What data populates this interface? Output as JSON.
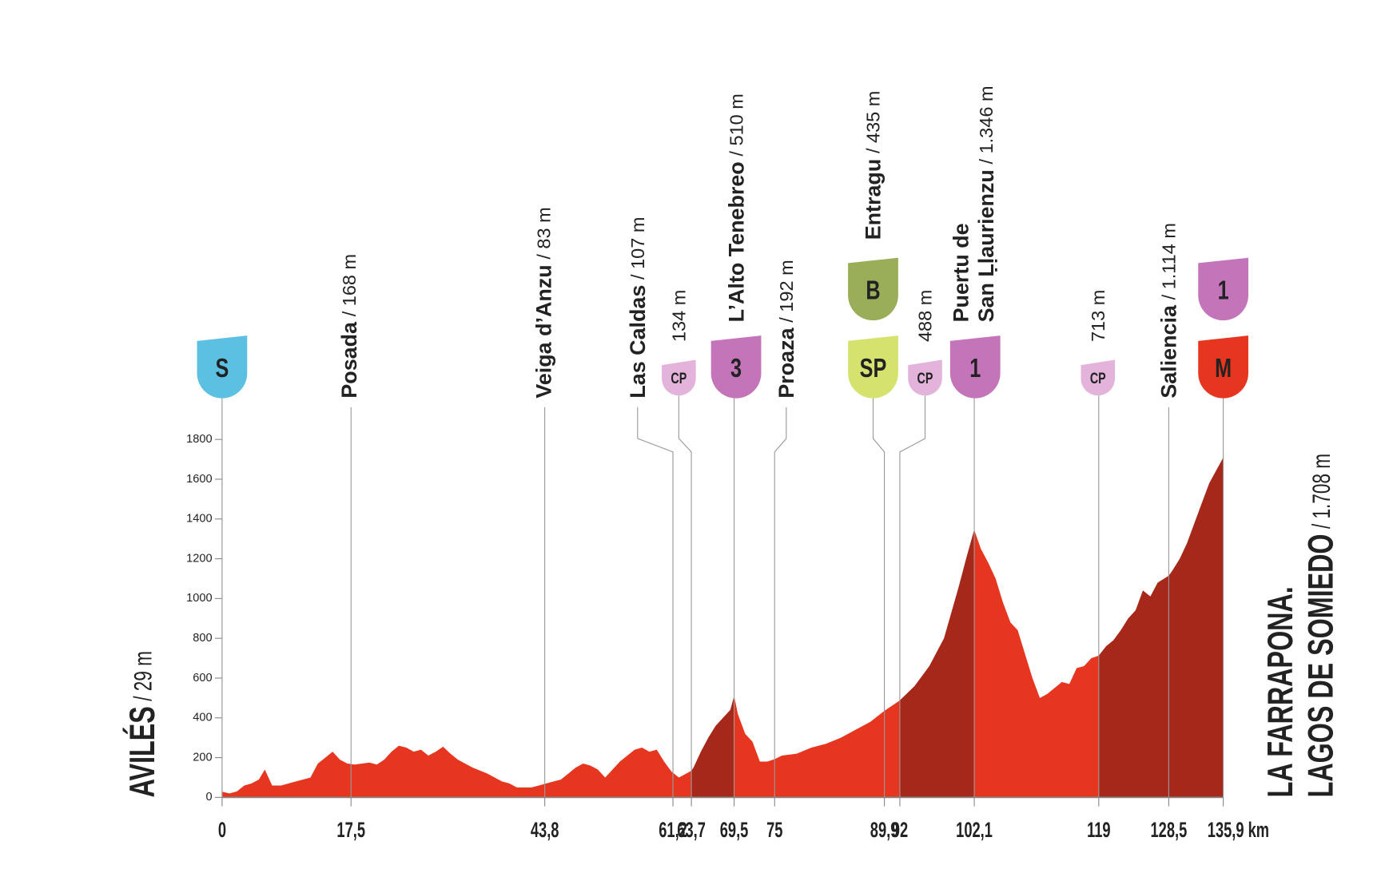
{
  "chart_data": {
    "type": "area",
    "start": {
      "name": "AVILÉS",
      "altitude": "/ 29 m"
    },
    "finish": {
      "name": [
        "LA FARRAPONA.",
        "LAGOS DE SOMIEDO"
      ],
      "altitude": "/ 1.708 m"
    },
    "x": [
      0,
      1,
      2,
      3,
      4,
      5,
      5.8,
      6.8,
      8,
      10,
      12,
      13,
      14,
      15,
      16,
      17,
      18,
      19,
      20,
      21,
      22,
      23,
      24,
      25,
      26,
      27,
      28,
      29,
      30,
      31,
      32,
      34,
      36,
      37,
      38,
      39,
      40,
      42,
      43,
      44,
      45,
      46,
      47,
      48,
      49,
      50,
      51,
      52,
      53,
      54,
      55,
      56,
      57,
      58,
      59,
      60,
      61,
      62,
      63,
      63.7,
      64,
      65,
      66,
      67,
      68,
      69,
      69.5,
      70,
      71,
      72,
      73,
      74,
      75,
      76,
      78,
      80,
      82,
      84,
      86,
      88,
      89.9,
      92,
      94,
      96,
      98,
      100,
      101,
      102.1,
      103,
      104,
      105,
      106,
      107,
      108,
      109,
      110,
      111,
      112,
      113,
      114,
      115,
      116,
      117,
      118,
      119,
      120,
      121,
      122,
      123,
      124,
      125,
      126,
      127,
      128.5,
      129,
      130,
      131,
      132,
      133,
      134,
      135.9
    ],
    "values": [
      29,
      20,
      30,
      60,
      70,
      90,
      140,
      60,
      60,
      80,
      100,
      170,
      200,
      230,
      190,
      170,
      165,
      170,
      175,
      165,
      190,
      230,
      260,
      250,
      230,
      240,
      210,
      230,
      255,
      220,
      190,
      150,
      120,
      100,
      80,
      70,
      50,
      50,
      60,
      70,
      80,
      90,
      120,
      150,
      170,
      160,
      140,
      100,
      140,
      180,
      210,
      240,
      250,
      230,
      240,
      180,
      130,
      100,
      120,
      134,
      150,
      230,
      300,
      360,
      400,
      440,
      510,
      420,
      320,
      280,
      180,
      180,
      192,
      210,
      220,
      250,
      270,
      300,
      340,
      380,
      435,
      488,
      560,
      660,
      800,
      1060,
      1200,
      1346,
      1250,
      1180,
      1100,
      980,
      880,
      840,
      720,
      600,
      500,
      520,
      550,
      580,
      570,
      650,
      660,
      700,
      713,
      760,
      790,
      840,
      900,
      940,
      1040,
      1010,
      1080,
      1114,
      1140,
      1200,
      1280,
      1380,
      1480,
      1580,
      1708
    ],
    "color": "#e6361f",
    "climb_color": "#a6281a",
    "climbs": [
      [
        63.7,
        69.5
      ],
      [
        92,
        102.1
      ],
      [
        119,
        135.9
      ]
    ],
    "xlim": [
      0,
      135.9
    ],
    "ylim": [
      0,
      1800
    ],
    "yticks": [
      0,
      200,
      400,
      600,
      800,
      1000,
      1200,
      1400,
      1600,
      1800
    ],
    "xticks": [
      0,
      {
        "value": 17.5,
        "label": "17,5"
      },
      {
        "value": 43.8,
        "label": "43,8"
      },
      {
        "value": 61.2,
        "label": "61,2"
      },
      {
        "value": 63.7,
        "label": "63,7"
      },
      {
        "value": 69.5,
        "label": "69,5"
      },
      75,
      {
        "value": 89.9,
        "label": "89,9"
      },
      92,
      {
        "value": 102.1,
        "label": "102,1"
      },
      119,
      {
        "value": 128.5,
        "label": "128,5"
      },
      {
        "value": 135.9,
        "label": "135,9 km"
      }
    ],
    "icon_colors": {
      "S": "#5cc0e2",
      "CP": "#e3b3dc",
      "3": "#c474b9",
      "1": "#c474b9",
      "B": "#9aad58",
      "SP": "#d5e26e",
      "M": "#e6361f"
    },
    "waypoints": [
      {
        "km": 0,
        "icons": [
          "S"
        ]
      },
      {
        "km": 17.5,
        "name": "Posada",
        "altitude": "/ 168 m"
      },
      {
        "km": 43.8,
        "name": "Veiga d’Anzu",
        "altitude": "/ 83 m"
      },
      {
        "km": 61.2,
        "name": "Las Caldas",
        "altitude": "/ 107 m"
      },
      {
        "km": 63.7,
        "altitude": "134 m",
        "icons": [
          "CP"
        ]
      },
      {
        "km": 69.5,
        "name": "L’Alto Tenebreo",
        "altitude": "/ 510 m",
        "icons": [
          "3"
        ]
      },
      {
        "km": 75,
        "name": "Proaza",
        "altitude": "/ 192 m"
      },
      {
        "km": 89.9,
        "name": "Entragu",
        "altitude": "/ 435 m",
        "icons": [
          "SP",
          "B"
        ]
      },
      {
        "km": 92,
        "altitude": "488 m",
        "icons": [
          "CP"
        ]
      },
      {
        "km": 102.1,
        "name": [
          "Puertu de",
          "San Ḷḷaurienzu"
        ],
        "altitude": "/ 1.346 m",
        "icons": [
          "1"
        ]
      },
      {
        "km": 119,
        "altitude": "713 m",
        "icons": [
          "CP"
        ]
      },
      {
        "km": 128.5,
        "name": "Saliencia",
        "altitude": "/ 1.114 m"
      },
      {
        "km": 135.9,
        "icons": [
          "M",
          "1"
        ]
      }
    ]
  }
}
